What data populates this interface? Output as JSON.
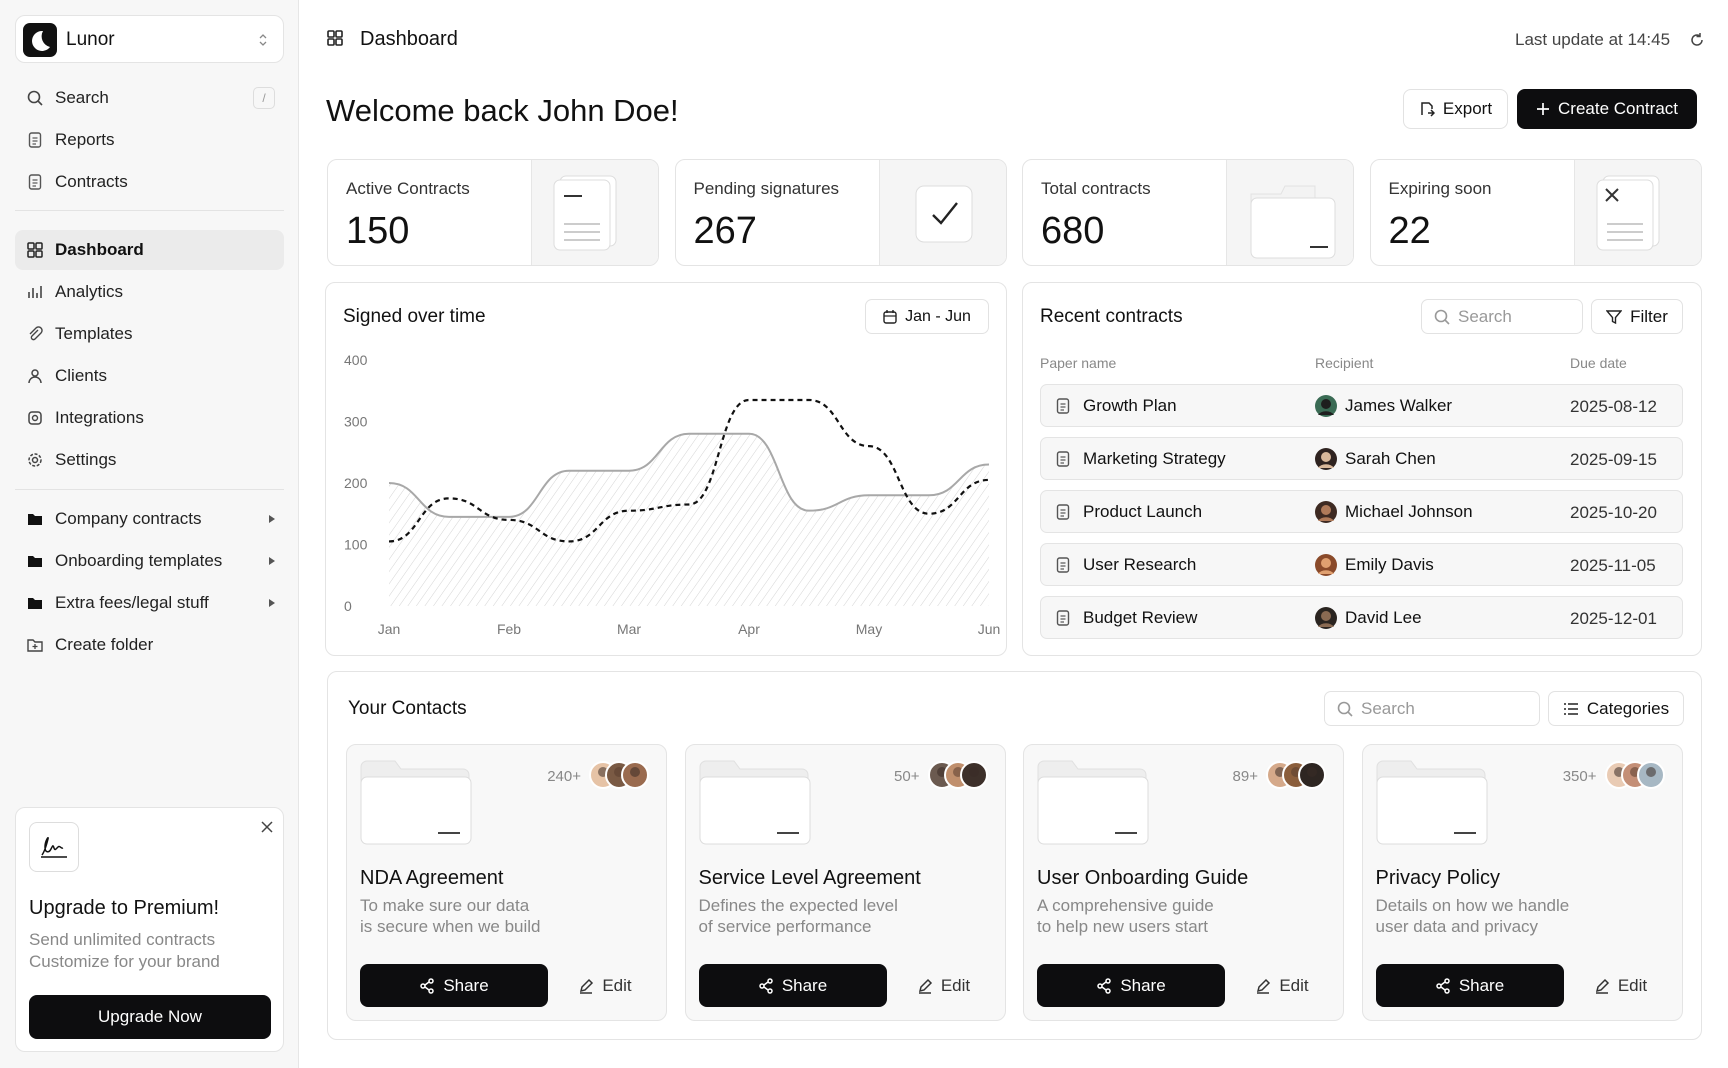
{
  "sidebar": {
    "brand": "Lunor",
    "search": "Search",
    "search_shortcut": "/",
    "nav_top": [
      "Reports",
      "Contracts"
    ],
    "nav": [
      "Dashboard",
      "Analytics",
      "Templates",
      "Clients",
      "Integrations",
      "Settings"
    ],
    "folders": [
      "Company contracts",
      "Onboarding templates",
      "Extra fees/legal stuff"
    ],
    "create_folder": "Create folder",
    "upgrade": {
      "title": "Upgrade to Premium!",
      "lines": [
        "Send unlimited contracts",
        "Customize for your brand"
      ],
      "button": "Upgrade Now"
    }
  },
  "header": {
    "title": "Dashboard",
    "last_update": "Last update at 14:45",
    "welcome": "Welcome back John Doe!",
    "export": "Export",
    "create": "Create Contract"
  },
  "stats": [
    {
      "label": "Active Contracts",
      "value": 150
    },
    {
      "label": "Pending signatures",
      "value": 267
    },
    {
      "label": "Total contracts",
      "value": 680
    },
    {
      "label": "Expiring soon",
      "value": 22
    }
  ],
  "chart": {
    "type": "line",
    "title": "Signed over time",
    "range_button": "Jan - Jun",
    "categories": [
      "Jan",
      null,
      "Feb",
      null,
      "Mar",
      null,
      "Apr",
      null,
      "May",
      null,
      "Jun"
    ],
    "series": [
      {
        "color": "#a8a8a8",
        "style": "solid",
        "fill": "hatch",
        "values": [
          200,
          145,
          145,
          220,
          220,
          280,
          280,
          155,
          180,
          180,
          230
        ]
      },
      {
        "color": "#111111",
        "style": "dashed",
        "values": [
          105,
          175,
          140,
          105,
          155,
          165,
          335,
          335,
          260,
          150,
          205
        ]
      }
    ],
    "ylim": [
      0,
      400
    ],
    "yticks": [
      0,
      100,
      200,
      300,
      400
    ]
  },
  "recent": {
    "title": "Recent contracts",
    "search": "Search",
    "filter": "Filter",
    "columns": [
      "Paper name",
      "Recipient",
      "Due date"
    ],
    "rows": [
      [
        "Growth Plan",
        "James Walker",
        "2025-08-12"
      ],
      [
        "Marketing Strategy",
        "Sarah Chen",
        "2025-09-15"
      ],
      [
        "Product Launch",
        "Michael Johnson",
        "2025-10-20"
      ],
      [
        "User Research",
        "Emily Davis",
        "2025-11-05"
      ],
      [
        "Budget Review",
        "David Lee",
        "2025-12-01"
      ]
    ]
  },
  "contacts": {
    "title": "Your Contacts",
    "search": "Search",
    "categories_button": "Categories",
    "share": "Share",
    "edit": "Edit",
    "cards": [
      {
        "count": "240+",
        "title": "NDA Agreement",
        "lines": [
          "To make sure our data",
          "is secure when we build"
        ]
      },
      {
        "count": "50+",
        "title": "Service Level Agreement",
        "lines": [
          "Defines the expected level",
          "of service performance"
        ]
      },
      {
        "count": "89+",
        "title": "User Onboarding Guide",
        "lines": [
          "A comprehensive guide",
          "to help new users start"
        ]
      },
      {
        "count": "350+",
        "title": "Privacy Policy",
        "lines": [
          "Details on how we handle",
          "user data and privacy"
        ]
      }
    ]
  }
}
